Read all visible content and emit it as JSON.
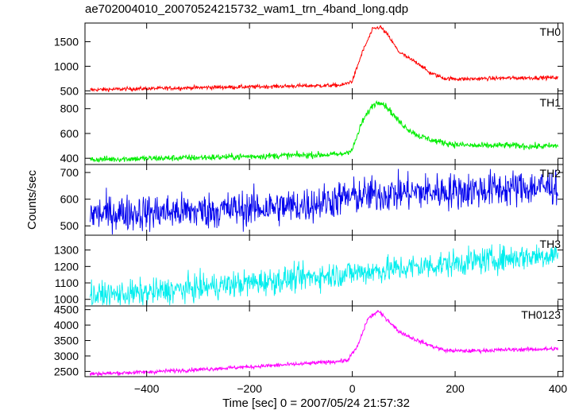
{
  "chart_data": {
    "type": "line",
    "title": "ae702004010_20070524215732_wam1_trn_4band_long.qdp",
    "xlabel": "Time [sec] 0 = 2007/05/24 21:57:32",
    "ylabel": "Counts/sec",
    "xlim": [
      -520,
      410
    ],
    "xticks": [
      -400,
      -200,
      0,
      200,
      400
    ],
    "xtick_labels": [
      "−400",
      "−200",
      "0",
      "200",
      "400"
    ],
    "grid": false,
    "panels": [
      {
        "label": "TH0",
        "color": "#ff0000",
        "ylim": [
          440,
          1880
        ],
        "yticks": [
          500,
          1000,
          1500
        ],
        "noise": 28,
        "x": [
          -510,
          -450,
          -400,
          -350,
          -300,
          -250,
          -200,
          -150,
          -100,
          -60,
          -20,
          0,
          20,
          40,
          55,
          70,
          90,
          110,
          130,
          150,
          180,
          220,
          260,
          300,
          350,
          400
        ],
        "y": [
          520,
          535,
          545,
          555,
          565,
          575,
          580,
          590,
          600,
          605,
          615,
          700,
          1300,
          1760,
          1800,
          1620,
          1300,
          1160,
          1050,
          870,
          750,
          740,
          750,
          760,
          765,
          770
        ]
      },
      {
        "label": "TH1",
        "color": "#00ee00",
        "ylim": [
          350,
          920
        ],
        "yticks": [
          400,
          600,
          800
        ],
        "noise": 18,
        "x": [
          -510,
          -450,
          -400,
          -350,
          -300,
          -250,
          -200,
          -150,
          -100,
          -60,
          -20,
          0,
          20,
          40,
          55,
          70,
          90,
          110,
          130,
          160,
          200,
          250,
          300,
          350,
          400
        ],
        "y": [
          390,
          395,
          398,
          402,
          405,
          410,
          415,
          420,
          425,
          428,
          432,
          470,
          700,
          830,
          860,
          800,
          700,
          630,
          580,
          540,
          510,
          500,
          505,
          495,
          500
        ]
      },
      {
        "label": "TH2",
        "color": "#0000ee",
        "ylim": [
          465,
          730
        ],
        "yticks": [
          500,
          600,
          700
        ],
        "noise": 34,
        "x": [
          -510,
          -300,
          -100,
          0,
          100,
          200,
          300,
          400
        ],
        "y": [
          545,
          555,
          575,
          610,
          625,
          630,
          640,
          648
        ]
      },
      {
        "label": "TH3",
        "color": "#00eeee",
        "ylim": [
          960,
          1390
        ],
        "yticks": [
          1000,
          1100,
          1200,
          1300
        ],
        "noise": 40,
        "x": [
          -510,
          -400,
          -300,
          -200,
          -100,
          0,
          100,
          200,
          300,
          400
        ],
        "y": [
          1020,
          1040,
          1070,
          1100,
          1130,
          1160,
          1190,
          1220,
          1250,
          1275
        ]
      },
      {
        "label": "TH0123",
        "color": "#ff00ff",
        "ylim": [
          2330,
          4620
        ],
        "yticks": [
          2500,
          3000,
          3500,
          4000,
          4500
        ],
        "noise": 45,
        "x": [
          -510,
          -450,
          -400,
          -300,
          -200,
          -100,
          -50,
          -10,
          10,
          30,
          50,
          70,
          90,
          120,
          150,
          180,
          220,
          300,
          400
        ],
        "y": [
          2420,
          2450,
          2480,
          2560,
          2650,
          2740,
          2800,
          2850,
          3300,
          4200,
          4450,
          4150,
          3800,
          3550,
          3350,
          3180,
          3160,
          3200,
          3230
        ]
      }
    ]
  }
}
